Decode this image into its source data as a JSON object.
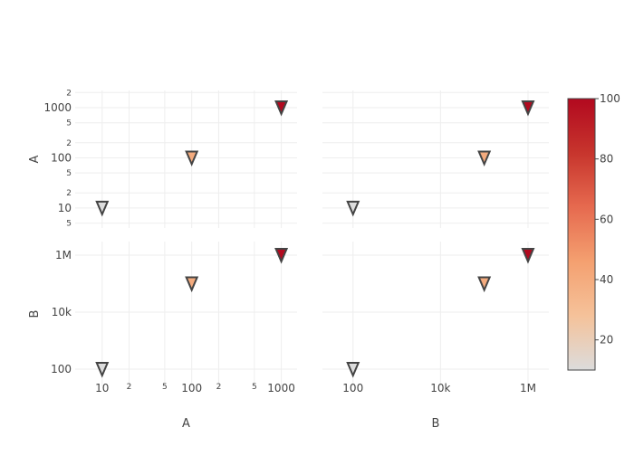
{
  "chart_data": {
    "type": "scatter",
    "marker_symbol": "triangle-down",
    "x_scale": "log",
    "y_scale": "log",
    "columns": [
      {
        "title": "A",
        "x": [
          10,
          100,
          1000
        ],
        "xlim": [
          5,
          1500
        ],
        "major_ticks": [
          {
            "value": 10,
            "label": "10"
          },
          {
            "value": 100,
            "label": "100"
          },
          {
            "value": 1000,
            "label": "1000"
          }
        ],
        "minor_ticks": [
          {
            "value": 20,
            "label": "2"
          },
          {
            "value": 50,
            "label": "5"
          },
          {
            "value": 200,
            "label": "2"
          },
          {
            "value": 500,
            "label": "5"
          }
        ]
      },
      {
        "title": "B",
        "x": [
          100,
          100000,
          1000000
        ],
        "xlim": [
          20,
          3000000
        ],
        "major_ticks": [
          {
            "value": 100,
            "label": "100"
          },
          {
            "value": 10000,
            "label": "10k"
          },
          {
            "value": 1000000,
            "label": "1M"
          }
        ],
        "minor_ticks": []
      }
    ],
    "rows": [
      {
        "title": "A",
        "y": [
          10,
          100,
          1000
        ],
        "ylim": [
          4,
          2200
        ],
        "major_ticks": [
          {
            "value": 10,
            "label": "10"
          },
          {
            "value": 100,
            "label": "100"
          },
          {
            "value": 1000,
            "label": "1000"
          }
        ],
        "minor_ticks": [
          {
            "value": 5,
            "label": "5"
          },
          {
            "value": 20,
            "label": "2"
          },
          {
            "value": 50,
            "label": "5"
          },
          {
            "value": 200,
            "label": "2"
          },
          {
            "value": 500,
            "label": "5"
          },
          {
            "value": 2000,
            "label": "2"
          }
        ]
      },
      {
        "title": "B",
        "y": [
          100,
          100000,
          1000000
        ],
        "ylim": [
          25,
          3000000
        ],
        "major_ticks": [
          {
            "value": 100,
            "label": "100"
          },
          {
            "value": 10000,
            "label": "10k"
          },
          {
            "value": 1000000,
            "label": "1M"
          }
        ],
        "minor_ticks": []
      }
    ],
    "color_values": [
      10,
      40,
      100
    ],
    "colorbar": {
      "range": [
        10,
        100
      ],
      "ticks": [
        20,
        40,
        60,
        80,
        100
      ],
      "colorscale": [
        "#dcdcdc",
        "#f5c29a",
        "#f4a070",
        "#e66a4f",
        "#c7352d",
        "#b2091f"
      ]
    }
  }
}
